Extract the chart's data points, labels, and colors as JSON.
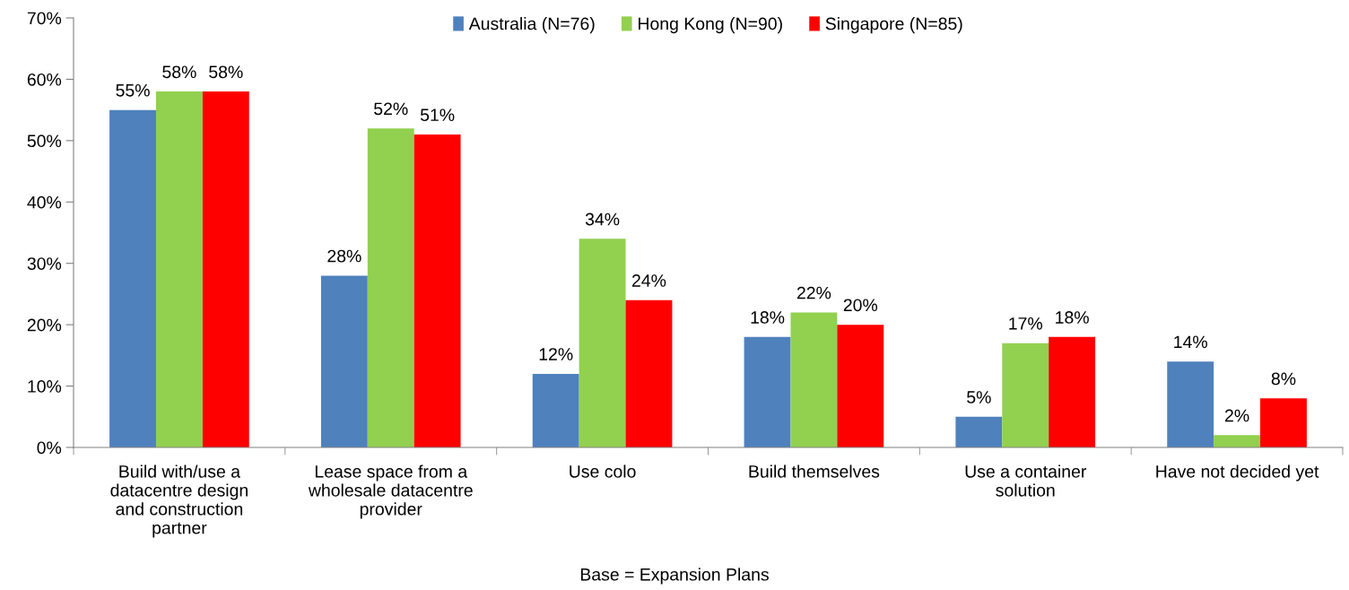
{
  "chart_data": {
    "type": "bar",
    "categories": [
      "Build with/use a\ndatacentre design\nand construction\npartner",
      "Lease space from a\nwholesale datacentre\nprovider",
      "Use colo",
      "Build themselves",
      "Use a container\nsolution",
      "Have not decided yet"
    ],
    "series": [
      {
        "name": "Australia (N=76)",
        "color": "#4f81bd",
        "values": [
          55,
          28,
          12,
          18,
          5,
          14
        ],
        "value_labels": [
          "55%",
          "28%",
          "12%",
          "18%",
          "5%",
          "14%"
        ]
      },
      {
        "name": "Hong Kong (N=90)",
        "color": "#92d050",
        "values": [
          58,
          52,
          34,
          22,
          17,
          2
        ],
        "value_labels": [
          "58%",
          "52%",
          "34%",
          "22%",
          "17%",
          "2%"
        ]
      },
      {
        "name": "Singapore (N=85)",
        "color": "#ff0000",
        "values": [
          58,
          51,
          24,
          20,
          18,
          8
        ],
        "value_labels": [
          "58%",
          "51%",
          "24%",
          "20%",
          "18%",
          "8%"
        ]
      }
    ],
    "ylim": [
      0,
      70
    ],
    "yticks": [
      {
        "value": 0,
        "label": "0%"
      },
      {
        "value": 10,
        "label": "10%"
      },
      {
        "value": 20,
        "label": "20%"
      },
      {
        "value": 30,
        "label": "30%"
      },
      {
        "value": 40,
        "label": "40%"
      },
      {
        "value": 50,
        "label": "50%"
      },
      {
        "value": 60,
        "label": "60%"
      },
      {
        "value": 70,
        "label": "70%"
      }
    ],
    "grid": false,
    "legend": "top",
    "annotations": [
      "Base = Expansion Plans"
    ]
  }
}
